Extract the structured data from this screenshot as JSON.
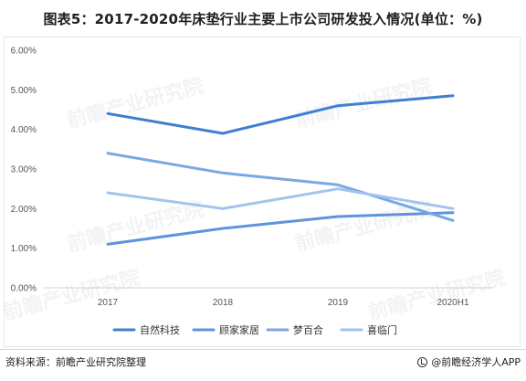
{
  "title": "图表5：2017-2020年床垫行业主要上市公司研发投入情况(单位：%)",
  "source": "资料来源：前瞻产业研究院整理",
  "brand": "@前瞻经济学人APP",
  "watermark": "前瞻产业研究院",
  "chart_data": {
    "type": "line",
    "categories": [
      "2017",
      "2018",
      "2019",
      "2020H1"
    ],
    "ylim": [
      0,
      6
    ],
    "yticks": [
      "0.00%",
      "1.00%",
      "2.00%",
      "3.00%",
      "4.00%",
      "5.00%",
      "6.00%"
    ],
    "grid": false,
    "legend_position": "bottom",
    "series": [
      {
        "name": "自然科技",
        "color": "#3f7fd1",
        "values": [
          4.4,
          3.9,
          4.6,
          4.85
        ]
      },
      {
        "name": "顾家家居",
        "color": "#5f93db",
        "values": [
          1.1,
          1.5,
          1.8,
          1.9
        ]
      },
      {
        "name": "梦百合",
        "color": "#7aa7e3",
        "values": [
          3.4,
          2.9,
          2.6,
          1.7
        ]
      },
      {
        "name": "喜临门",
        "color": "#a3c3ee",
        "values": [
          2.4,
          2.0,
          2.5,
          2.0
        ]
      }
    ]
  }
}
